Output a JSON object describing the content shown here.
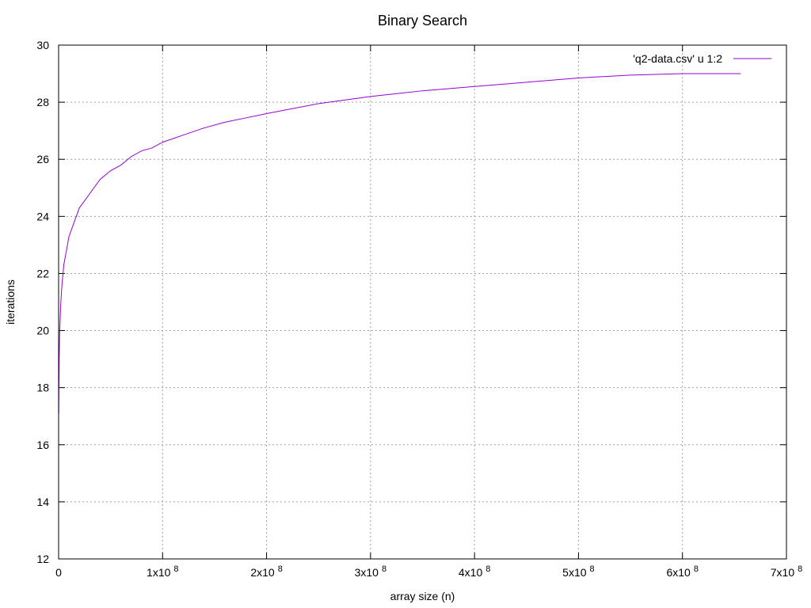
{
  "chart_data": {
    "type": "line",
    "title": "Binary Search",
    "xlabel": "array size (n)",
    "ylabel": "iterations",
    "xlim": [
      0,
      700000000
    ],
    "ylim": [
      12,
      30
    ],
    "grid": true,
    "legend_position": "top-right",
    "x_ticks": [
      {
        "value": 0,
        "mantissa": "0",
        "exp": ""
      },
      {
        "value": 100000000,
        "mantissa": "1x10",
        "exp": "8"
      },
      {
        "value": 200000000,
        "mantissa": "2x10",
        "exp": "8"
      },
      {
        "value": 300000000,
        "mantissa": "3x10",
        "exp": "8"
      },
      {
        "value": 400000000,
        "mantissa": "4x10",
        "exp": "8"
      },
      {
        "value": 500000000,
        "mantissa": "5x10",
        "exp": "8"
      },
      {
        "value": 600000000,
        "mantissa": "6x10",
        "exp": "8"
      },
      {
        "value": 700000000,
        "mantissa": "7x10",
        "exp": "8"
      }
    ],
    "y_ticks": [
      12,
      14,
      16,
      18,
      20,
      22,
      24,
      26,
      28,
      30
    ],
    "series": [
      {
        "name": "'q2-data.csv' u 1:2",
        "color": "#9400d3",
        "points": [
          [
            140000,
            17.1
          ],
          [
            250000,
            17.9
          ],
          [
            500000,
            18.9
          ],
          [
            1000000,
            19.9
          ],
          [
            2000000,
            20.9
          ],
          [
            3000000,
            21.5
          ],
          [
            5000000,
            22.3
          ],
          [
            7000000,
            22.7
          ],
          [
            10000000,
            23.3
          ],
          [
            15000000,
            23.8
          ],
          [
            20000000,
            24.3
          ],
          [
            30000000,
            24.8
          ],
          [
            40000000,
            25.3
          ],
          [
            50000000,
            25.6
          ],
          [
            60000000,
            25.8
          ],
          [
            70000000,
            26.1
          ],
          [
            80000000,
            26.3
          ],
          [
            90000000,
            26.4
          ],
          [
            100000000,
            26.6
          ],
          [
            120000000,
            26.85
          ],
          [
            140000000,
            27.1
          ],
          [
            160000000,
            27.3
          ],
          [
            180000000,
            27.45
          ],
          [
            200000000,
            27.6
          ],
          [
            250000000,
            27.95
          ],
          [
            300000000,
            28.2
          ],
          [
            350000000,
            28.4
          ],
          [
            400000000,
            28.55
          ],
          [
            450000000,
            28.7
          ],
          [
            500000000,
            28.85
          ],
          [
            550000000,
            28.95
          ],
          [
            600000000,
            29.0
          ],
          [
            656000000,
            29.0
          ]
        ]
      }
    ]
  }
}
